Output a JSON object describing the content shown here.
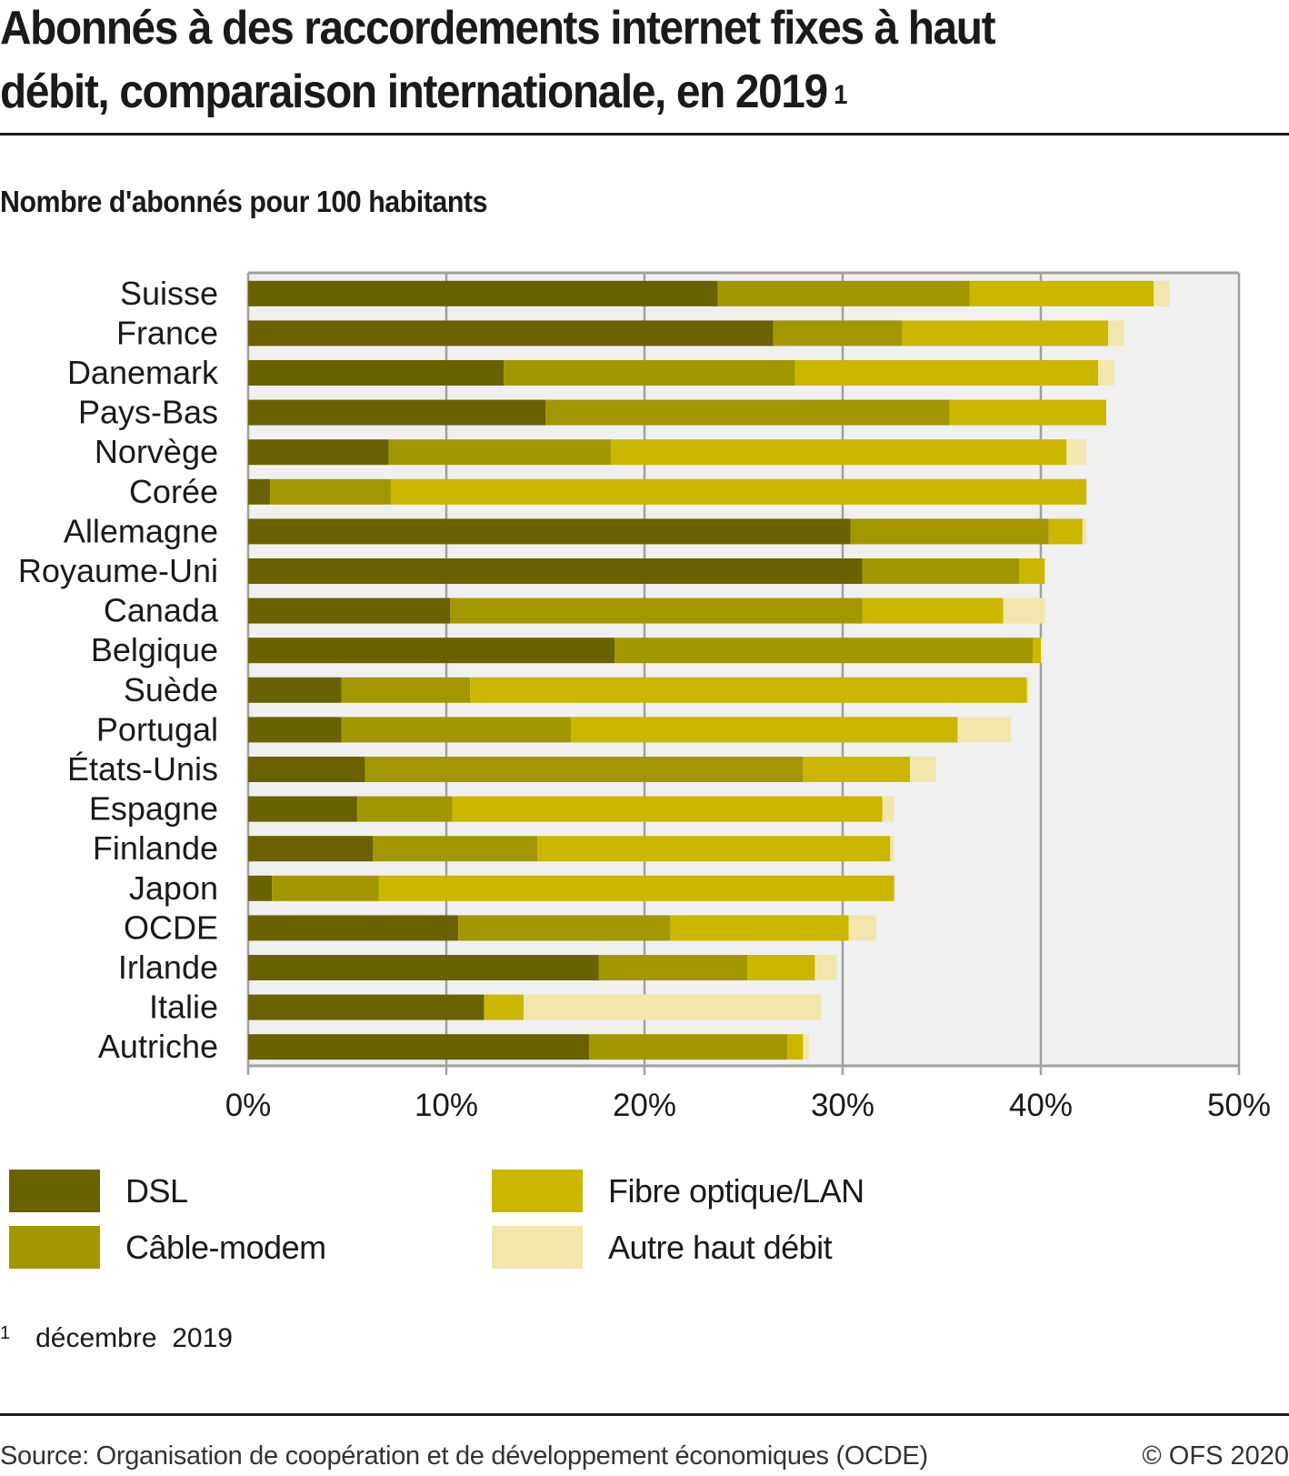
{
  "header": {
    "title_line1": "Abonnés à des raccordements internet fixes à haut",
    "title_line2": "débit, comparaison internationale, en 2019",
    "title_footnote_mark": "1",
    "subtitle": "Nombre d'abonnés pour 100 habitants"
  },
  "chart_data": {
    "type": "bar",
    "orientation": "horizontal",
    "stacked": true,
    "title": "Abonnés à des raccordements internet fixes à haut débit, comparaison internationale, en 2019",
    "subtitle": "Nombre d'abonnés pour 100 habitants",
    "xlabel": "",
    "ylabel": "",
    "xlim": [
      0,
      50
    ],
    "x_ticks": [
      0,
      10,
      20,
      30,
      40,
      50
    ],
    "x_tick_labels": [
      "0%",
      "10%",
      "20%",
      "30%",
      "40%",
      "50%"
    ],
    "grid": true,
    "legend_position": "bottom",
    "categories": [
      "Suisse",
      "France",
      "Danemark",
      "Pays-Bas",
      "Norvège",
      "Corée",
      "Allemagne",
      "Royaume-Uni",
      "Canada",
      "Belgique",
      "Suède",
      "Portugal",
      "États-Unis",
      "Espagne",
      "Finlande",
      "Japon",
      "OCDE",
      "Irlande",
      "Italie",
      "Autriche"
    ],
    "series": [
      {
        "name": "DSL",
        "color": "#686200",
        "values": [
          23.7,
          26.5,
          12.9,
          15.0,
          7.1,
          1.1,
          30.4,
          31.0,
          10.2,
          18.5,
          4.7,
          4.7,
          5.9,
          5.5,
          6.3,
          1.2,
          10.6,
          17.7,
          11.9,
          17.2
        ]
      },
      {
        "name": "Câble-modem",
        "color": "#a29700",
        "values": [
          12.7,
          6.5,
          14.7,
          20.4,
          11.2,
          6.1,
          10.0,
          7.9,
          20.8,
          21.1,
          6.5,
          11.6,
          22.1,
          4.8,
          8.3,
          5.4,
          10.7,
          7.5,
          0.0,
          10.0
        ]
      },
      {
        "name": "Fibre optique/LAN",
        "color": "#cbb600",
        "values": [
          9.3,
          10.4,
          15.3,
          7.9,
          23.0,
          35.1,
          1.7,
          1.3,
          7.1,
          0.4,
          28.1,
          19.5,
          5.4,
          21.7,
          17.8,
          26.0,
          9.0,
          3.4,
          2.0,
          0.8
        ]
      },
      {
        "name": "Autre haut débit",
        "color": "#f1e7ad",
        "values": [
          0.8,
          0.8,
          0.8,
          0.0,
          1.0,
          0.0,
          0.2,
          0.0,
          2.1,
          0.1,
          0.1,
          2.7,
          1.3,
          0.6,
          0.2,
          0.0,
          1.4,
          1.1,
          15.0,
          0.3
        ]
      }
    ]
  },
  "colors": {
    "plot_background": "#f0f0f0",
    "grid": "#a0a0a0",
    "text": "#1a1a1a"
  },
  "footnote": {
    "mark": "1",
    "text": "décembre  2019"
  },
  "footer": {
    "source": "Source: Organisation de coopération et de développement économiques (OCDE)",
    "copyright": "© OFS 2020"
  }
}
